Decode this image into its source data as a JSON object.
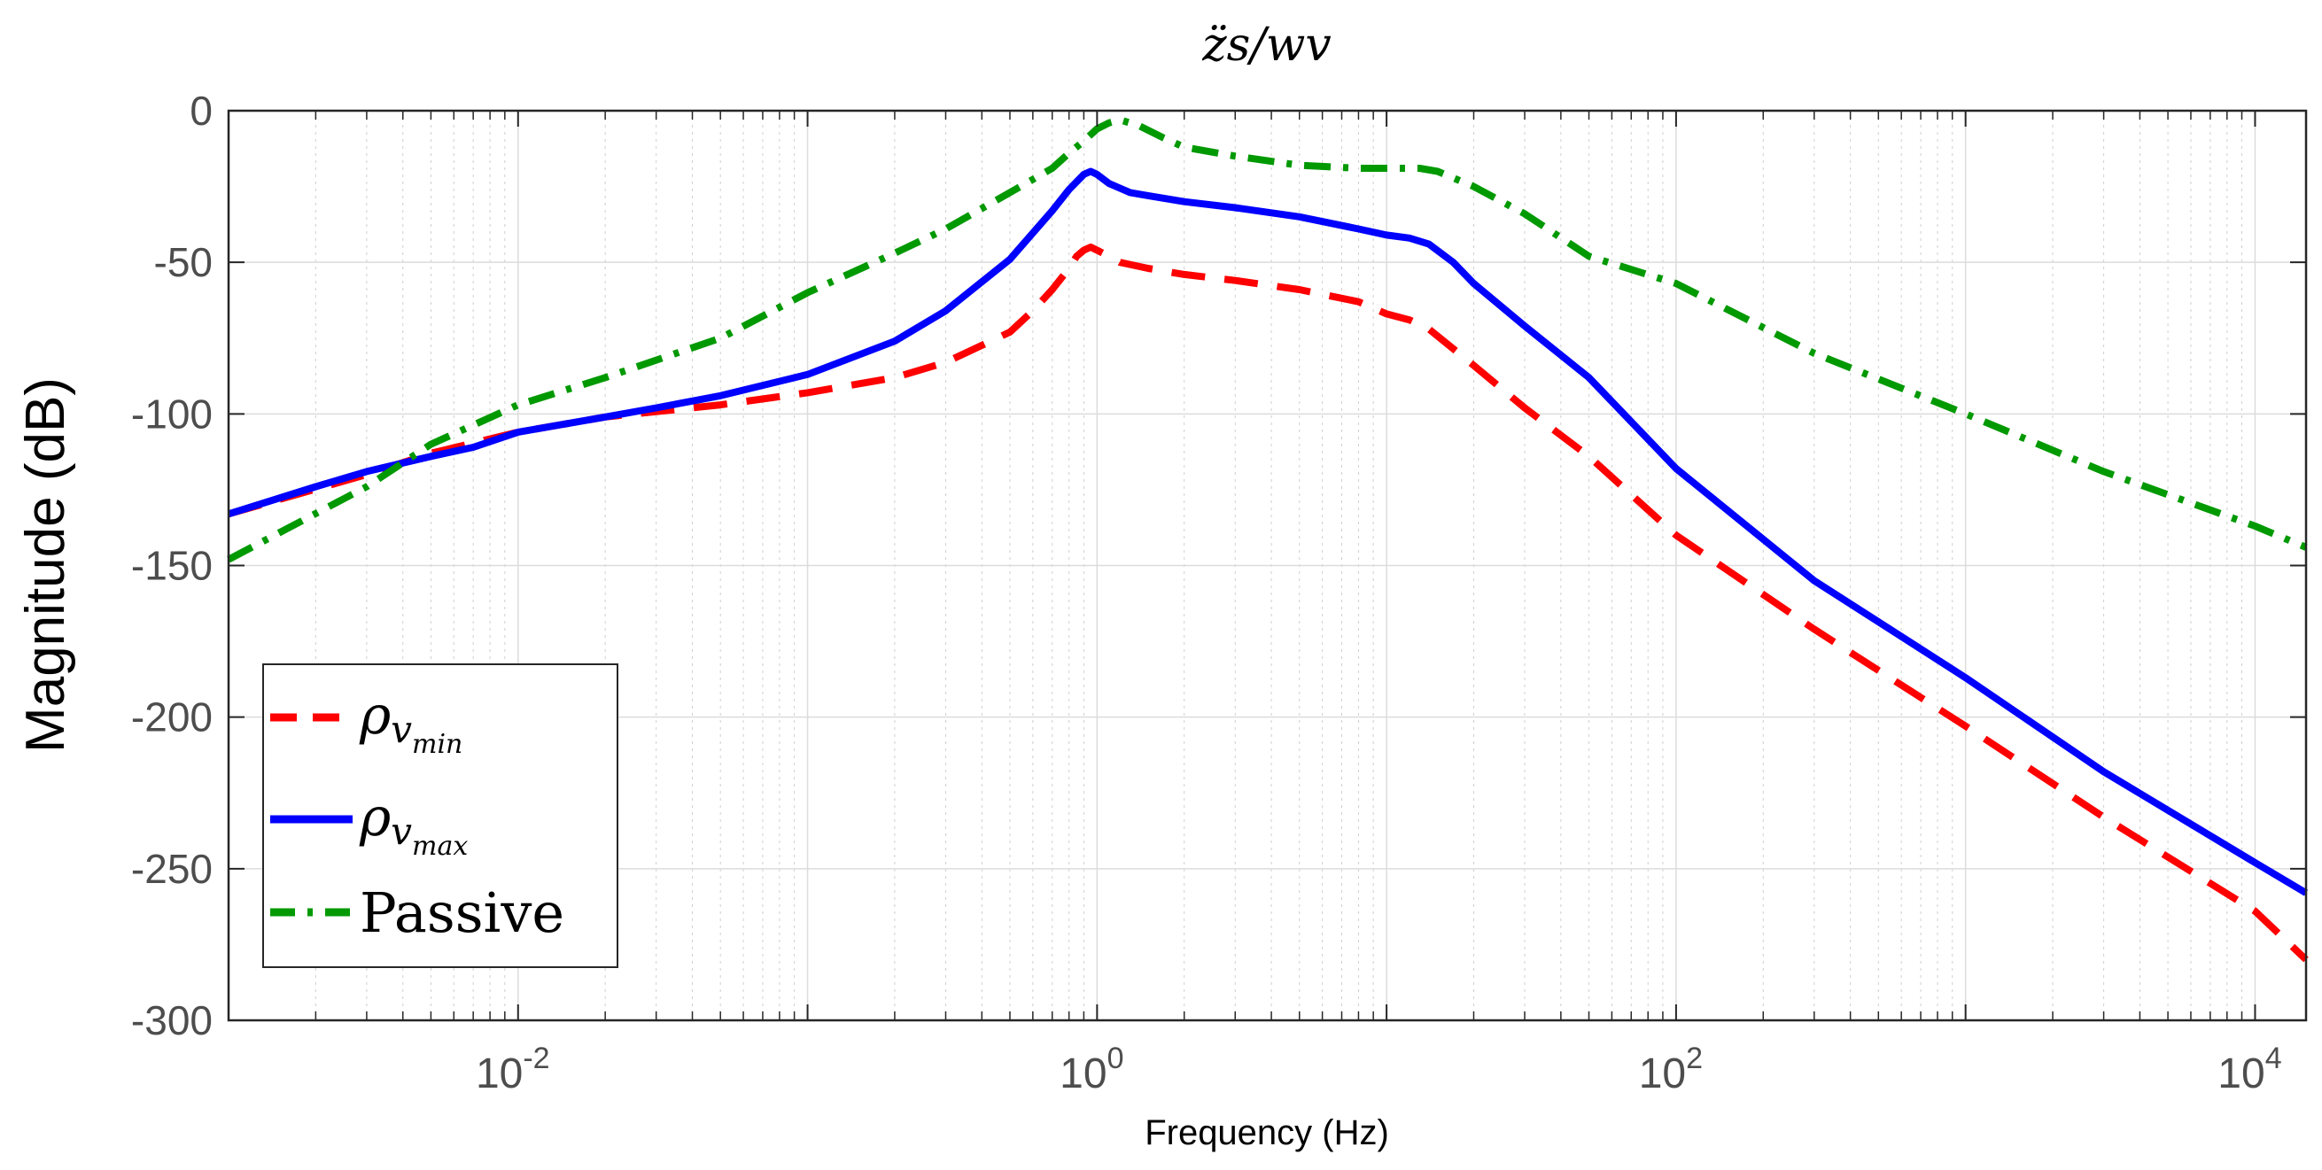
{
  "chart_data": {
    "type": "line",
    "title": "z̈s/wv",
    "xlabel": "Frequency  (Hz)",
    "ylabel": "Magnitude (dB)",
    "xscale": "log",
    "xlim": [
      0.001,
      15000
    ],
    "ylim": [
      -300,
      0
    ],
    "yticks": [
      0,
      -50,
      -100,
      -150,
      -200,
      -250,
      -300
    ],
    "ytick_labels": [
      "0",
      "-50",
      "-100",
      "-150",
      "-200",
      "-250",
      "-300"
    ],
    "xticks": [
      {
        "value": 0.01,
        "base": "10",
        "exp": "-2"
      },
      {
        "value": 1,
        "base": "10",
        "exp": "0"
      },
      {
        "value": 100,
        "base": "10",
        "exp": "2"
      },
      {
        "value": 10000,
        "base": "10",
        "exp": "4"
      }
    ],
    "grid": true,
    "legend_position": "bottom-left",
    "series": [
      {
        "name": "ρv_min",
        "legend_main": "ρ",
        "legend_sub": "v",
        "legend_subsub": "min",
        "color": "#ff0000",
        "style": "dashed",
        "points": [
          [
            0.001,
            -133
          ],
          [
            0.003,
            -120
          ],
          [
            0.005,
            -113
          ],
          [
            0.01,
            -106
          ],
          [
            0.02,
            -101
          ],
          [
            0.05,
            -97
          ],
          [
            0.1,
            -93
          ],
          [
            0.2,
            -88
          ],
          [
            0.3,
            -83
          ],
          [
            0.5,
            -73
          ],
          [
            0.6,
            -66
          ],
          [
            0.7,
            -59
          ],
          [
            0.8,
            -52
          ],
          [
            0.85,
            -48
          ],
          [
            0.9,
            -46
          ],
          [
            0.95,
            -45
          ],
          [
            1.0,
            -46
          ],
          [
            1.1,
            -48
          ],
          [
            1.2,
            -50
          ],
          [
            1.5,
            -52
          ],
          [
            2,
            -54
          ],
          [
            3,
            -56
          ],
          [
            5,
            -59
          ],
          [
            8,
            -63
          ],
          [
            10,
            -67
          ],
          [
            12,
            -69
          ],
          [
            14,
            -72
          ],
          [
            20,
            -84
          ],
          [
            30,
            -98
          ],
          [
            50,
            -114
          ],
          [
            100,
            -140
          ],
          [
            300,
            -171
          ],
          [
            1000,
            -203
          ],
          [
            3000,
            -233
          ],
          [
            10000,
            -264
          ],
          [
            15000,
            -280
          ]
        ]
      },
      {
        "name": "ρv_max",
        "legend_main": "ρ",
        "legend_sub": "v",
        "legend_subsub": "max",
        "color": "#0000ff",
        "style": "solid",
        "points": [
          [
            0.001,
            -133
          ],
          [
            0.002,
            -124
          ],
          [
            0.003,
            -119
          ],
          [
            0.005,
            -114
          ],
          [
            0.007,
            -111
          ],
          [
            0.01,
            -106
          ],
          [
            0.02,
            -101
          ],
          [
            0.03,
            -98
          ],
          [
            0.05,
            -94
          ],
          [
            0.1,
            -87
          ],
          [
            0.2,
            -76
          ],
          [
            0.3,
            -66
          ],
          [
            0.5,
            -49
          ],
          [
            0.7,
            -33
          ],
          [
            0.8,
            -26
          ],
          [
            0.9,
            -21
          ],
          [
            0.95,
            -20
          ],
          [
            1.0,
            -21
          ],
          [
            1.1,
            -24
          ],
          [
            1.3,
            -27
          ],
          [
            1.5,
            -28
          ],
          [
            2,
            -30
          ],
          [
            3,
            -32
          ],
          [
            5,
            -35
          ],
          [
            8,
            -39
          ],
          [
            10,
            -41
          ],
          [
            12,
            -42
          ],
          [
            14,
            -44
          ],
          [
            17,
            -50
          ],
          [
            20,
            -57
          ],
          [
            30,
            -71
          ],
          [
            50,
            -88
          ],
          [
            100,
            -118
          ],
          [
            300,
            -155
          ],
          [
            1000,
            -187
          ],
          [
            3000,
            -218
          ],
          [
            10000,
            -248
          ],
          [
            15000,
            -258
          ]
        ]
      },
      {
        "name": "Passive",
        "legend_main": "Passive",
        "color": "#009900",
        "style": "dashdot",
        "points": [
          [
            0.001,
            -148
          ],
          [
            0.003,
            -124
          ],
          [
            0.005,
            -110
          ],
          [
            0.01,
            -97
          ],
          [
            0.02,
            -88
          ],
          [
            0.05,
            -75
          ],
          [
            0.1,
            -60
          ],
          [
            0.2,
            -47
          ],
          [
            0.3,
            -39
          ],
          [
            0.5,
            -27
          ],
          [
            0.7,
            -19
          ],
          [
            0.8,
            -14
          ],
          [
            0.9,
            -10
          ],
          [
            1.0,
            -6
          ],
          [
            1.1,
            -4
          ],
          [
            1.2,
            -3
          ],
          [
            1.4,
            -5
          ],
          [
            1.7,
            -9
          ],
          [
            2,
            -12
          ],
          [
            3,
            -15
          ],
          [
            5,
            -18
          ],
          [
            8,
            -19
          ],
          [
            10,
            -19
          ],
          [
            13,
            -19
          ],
          [
            15,
            -20
          ],
          [
            20,
            -25
          ],
          [
            30,
            -34
          ],
          [
            50,
            -48
          ],
          [
            100,
            -57
          ],
          [
            300,
            -80
          ],
          [
            1000,
            -100
          ],
          [
            3000,
            -119
          ],
          [
            10000,
            -137
          ],
          [
            15000,
            -144
          ]
        ]
      }
    ]
  }
}
